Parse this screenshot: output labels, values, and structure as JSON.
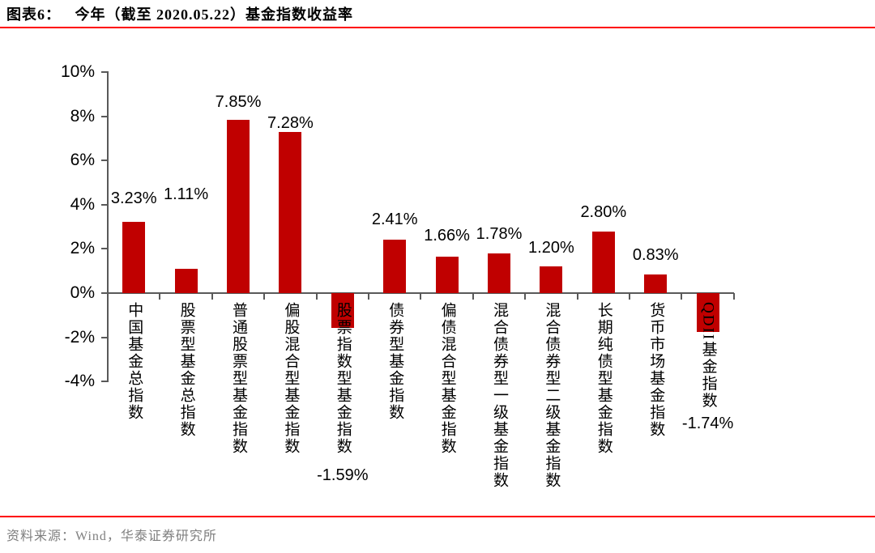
{
  "header": {
    "figure_label": "图表6：",
    "title": "今年（截至 2020.05.22）基金指数收益率"
  },
  "chart_data": {
    "type": "bar",
    "title": "今年（截至 2020.05.22）基金指数收益率",
    "categories": [
      "中国基金总指数",
      "股票型基金总指数",
      "普通股票型基金指数",
      "偏股混合型基金指数",
      "股票指数型基金指数",
      "债券型基金指数",
      "偏债混合型基金指数",
      "混合债券型一级基金指数",
      "混合债券型二级基金指数",
      "长期纯债型基金指数",
      "货币市场基金指数",
      "QDII基金指数"
    ],
    "values": [
      3.23,
      1.11,
      7.85,
      7.28,
      -1.59,
      2.41,
      1.66,
      1.78,
      1.2,
      2.8,
      0.83,
      -1.74
    ],
    "value_labels": [
      "3.23%",
      "1.11%",
      "7.85%",
      "7.28%",
      "-1.59%",
      "2.41%",
      "1.66%",
      "1.78%",
      "1.20%",
      "2.80%",
      "0.83%",
      "-1.74%"
    ],
    "y_ticks": [
      "10%",
      "8%",
      "6%",
      "4%",
      "2%",
      "0%",
      "-2%",
      "-4%"
    ],
    "ylim": [
      -4,
      10
    ],
    "xlabel": "",
    "ylabel": "",
    "grid": false,
    "legend": false,
    "bar_color": "#c00000",
    "axis_color": "#595959",
    "accent_color": "#fe0000"
  },
  "footer": {
    "source": "资料来源：Wind，华泰证券研究所"
  }
}
